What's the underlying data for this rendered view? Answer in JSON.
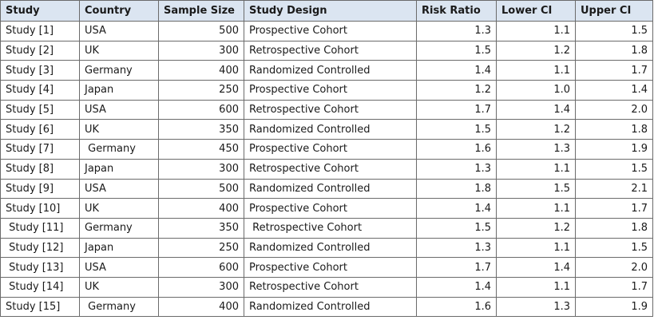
{
  "table": {
    "headers": [
      "Study",
      "Country",
      "Sample Size",
      "Study Design",
      "Risk Ratio",
      "Lower CI",
      "Upper CI"
    ],
    "rows": [
      [
        "Study [1]",
        "USA",
        "500",
        "Prospective Cohort",
        "1.3",
        "1.1",
        "1.5"
      ],
      [
        "Study [2]",
        "UK",
        "300",
        "Retrospective Cohort",
        "1.5",
        "1.2",
        "1.8"
      ],
      [
        "Study [3]",
        "Germany",
        "400",
        "Randomized Controlled",
        "1.4",
        "1.1",
        "1.7"
      ],
      [
        "Study [4]",
        "Japan",
        "250",
        "Prospective Cohort",
        "1.2",
        "1.0",
        "1.4"
      ],
      [
        "Study [5]",
        "USA",
        "600",
        "Retrospective Cohort",
        "1.7",
        "1.4",
        "2.0"
      ],
      [
        "Study [6]",
        "UK",
        "350",
        "Randomized Controlled",
        "1.5",
        "1.2",
        "1.8"
      ],
      [
        "Study [7]",
        " Germany",
        "450",
        "Prospective Cohort",
        "1.6",
        "1.3",
        "1.9"
      ],
      [
        "Study [8]",
        "Japan",
        "300",
        "Retrospective Cohort",
        "1.3",
        "1.1",
        "1.5"
      ],
      [
        "Study [9]",
        "USA",
        "500",
        "Randomized Controlled",
        "1.8",
        "1.5",
        "2.1"
      ],
      [
        "Study [10]",
        "UK",
        "400",
        "Prospective Cohort",
        "1.4",
        "1.1",
        "1.7"
      ],
      [
        " Study [11]",
        "Germany",
        "350",
        " Retrospective Cohort",
        "1.5",
        "1.2",
        "1.8"
      ],
      [
        " Study [12]",
        "Japan",
        "250",
        "Randomized Controlled",
        "1.3",
        "1.1",
        "1.5"
      ],
      [
        " Study [13]",
        "USA",
        "600",
        "Prospective Cohort",
        "1.7",
        "1.4",
        "2.0"
      ],
      [
        " Study [14]",
        "UK",
        "300",
        "Retrospective Cohort",
        "1.4",
        "1.1",
        "1.7"
      ],
      [
        "Study [15]",
        " Germany",
        "400",
        "Randomized Controlled",
        "1.6",
        "1.3",
        "1.9"
      ]
    ]
  }
}
